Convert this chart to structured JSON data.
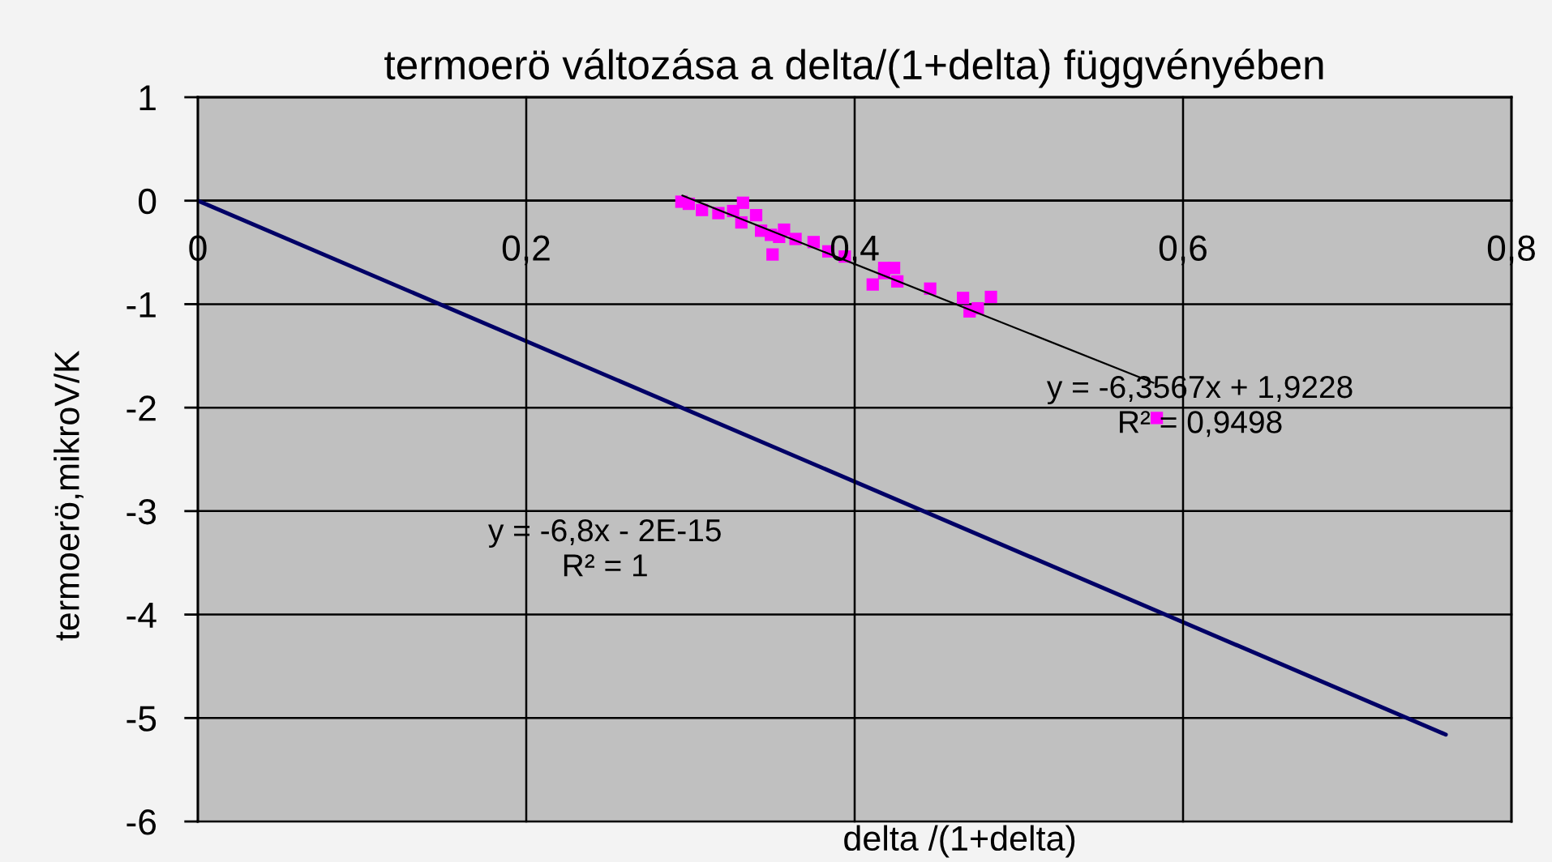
{
  "chart_data": {
    "type": "scatter",
    "title": "termoerö változása a delta/(1+delta) függvényében",
    "xlabel": "delta /(1+delta)",
    "ylabel": "termoerö,mikroV/K",
    "xlim": [
      0,
      0.8
    ],
    "xticks": [
      {
        "value": 0,
        "label": "0"
      },
      {
        "value": 0.2,
        "label": "0,2"
      },
      {
        "value": 0.4,
        "label": "0,4"
      },
      {
        "value": 0.6,
        "label": "0,6"
      },
      {
        "value": 0.8,
        "label": "0,8"
      }
    ],
    "ylim": [
      -6,
      1
    ],
    "yticks": [
      -6,
      -5,
      -4,
      -3,
      -2,
      -1,
      0,
      1
    ],
    "grid": true,
    "series": [
      {
        "type": "line",
        "color": "#000066",
        "x": [
          0,
          0.76
        ],
        "values": [
          0,
          -5.16
        ]
      },
      {
        "color": "#ff00ff",
        "marker": "square",
        "x": [
          0.2945,
          0.299,
          0.307,
          0.317,
          0.326,
          0.332,
          0.331,
          0.34,
          0.343,
          0.349,
          0.354,
          0.357,
          0.35,
          0.364,
          0.375,
          0.384,
          0.394,
          0.418,
          0.424,
          0.411,
          0.418,
          0.426,
          0.446,
          0.466,
          0.47,
          0.475,
          0.483,
          0.584
        ],
        "values": [
          -0.01,
          -0.03,
          -0.09,
          -0.12,
          -0.1,
          -0.02,
          -0.21,
          -0.14,
          -0.29,
          -0.33,
          -0.35,
          -0.28,
          -0.52,
          -0.37,
          -0.4,
          -0.49,
          -0.54,
          -0.65,
          -0.65,
          -0.81,
          -0.7,
          -0.78,
          -0.85,
          -0.94,
          -1.07,
          -1.04,
          -0.93,
          -2.1
        ]
      },
      {
        "type": "line",
        "color": "#000000",
        "x": [
          0.295,
          0.582
        ],
        "values": [
          0.05,
          -1.76
        ]
      }
    ],
    "annotations": [
      "y = -6,3567x + 1,9228\nR² = 0,9498",
      "y = -6,8x - 2E-15\nR² = 1"
    ]
  }
}
